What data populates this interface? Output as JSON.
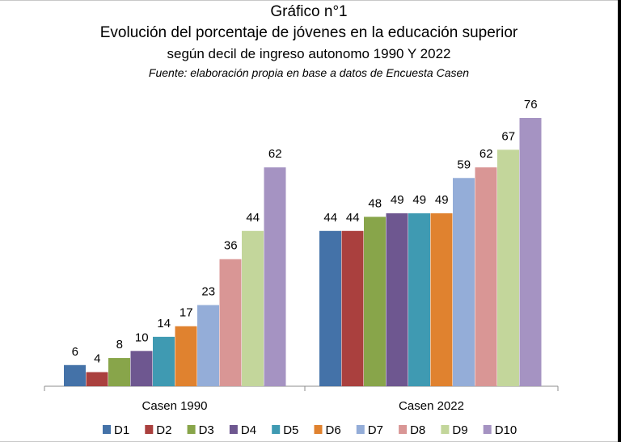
{
  "chart_data": {
    "type": "bar",
    "title": "Gráfico n°1",
    "subtitle_line1": "Evolución del porcentaje de jóvenes en la educación superior",
    "subtitle_line2": "según decil de ingreso autonomo 1990 Y 2022",
    "source": "Fuente:  elaboración propia en base a datos de Encuesta  Casen",
    "categories": [
      "Casen 1990",
      "Casen 2022"
    ],
    "series": [
      {
        "name": "D1",
        "color": "#4472A8",
        "values": [
          6,
          44
        ]
      },
      {
        "name": "D2",
        "color": "#AA403E",
        "values": [
          4,
          44
        ]
      },
      {
        "name": "D3",
        "color": "#88A54A",
        "values": [
          8,
          48
        ]
      },
      {
        "name": "D4",
        "color": "#6E5790",
        "values": [
          10,
          49
        ]
      },
      {
        "name": "D5",
        "color": "#3F9AB2",
        "values": [
          14,
          49
        ]
      },
      {
        "name": "D6",
        "color": "#E0822F",
        "values": [
          17,
          49
        ]
      },
      {
        "name": "D7",
        "color": "#94ADD8",
        "values": [
          23,
          59
        ]
      },
      {
        "name": "D8",
        "color": "#D99695",
        "values": [
          36,
          62
        ]
      },
      {
        "name": "D9",
        "color": "#C3D69B",
        "values": [
          44,
          67
        ]
      },
      {
        "name": "D10",
        "color": "#A593C2",
        "values": [
          62,
          76
        ]
      }
    ],
    "ylim": [
      0,
      76
    ],
    "grid": false,
    "legend": "bottom"
  }
}
